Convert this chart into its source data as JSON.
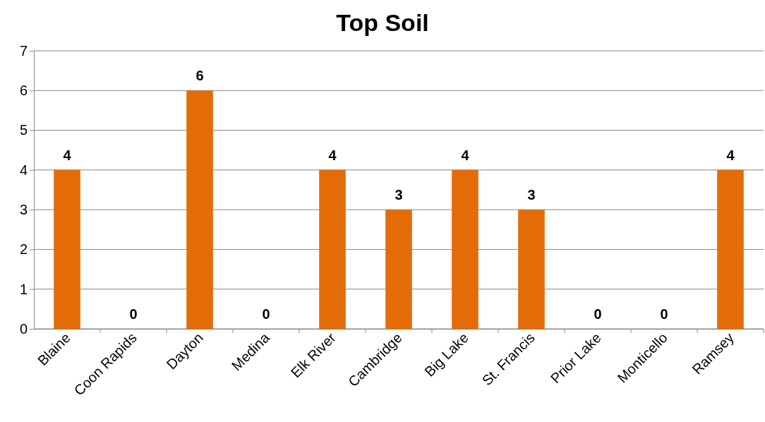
{
  "chart_data": {
    "type": "bar",
    "title": "Top Soil",
    "categories": [
      "Blaine",
      "Coon Rapids",
      "Dayton",
      "Medina",
      "Elk River",
      "Cambridge",
      "Big Lake",
      "St. Francis",
      "Prior Lake",
      "Monticello",
      "Ramsey"
    ],
    "values": [
      4,
      0,
      6,
      0,
      4,
      3,
      4,
      3,
      0,
      0,
      4
    ],
    "color": "#e36c09",
    "ylim": [
      0,
      7
    ],
    "yticks": [
      0,
      1,
      2,
      3,
      4,
      5,
      6,
      7
    ],
    "grid": "y",
    "data_labels": true
  }
}
